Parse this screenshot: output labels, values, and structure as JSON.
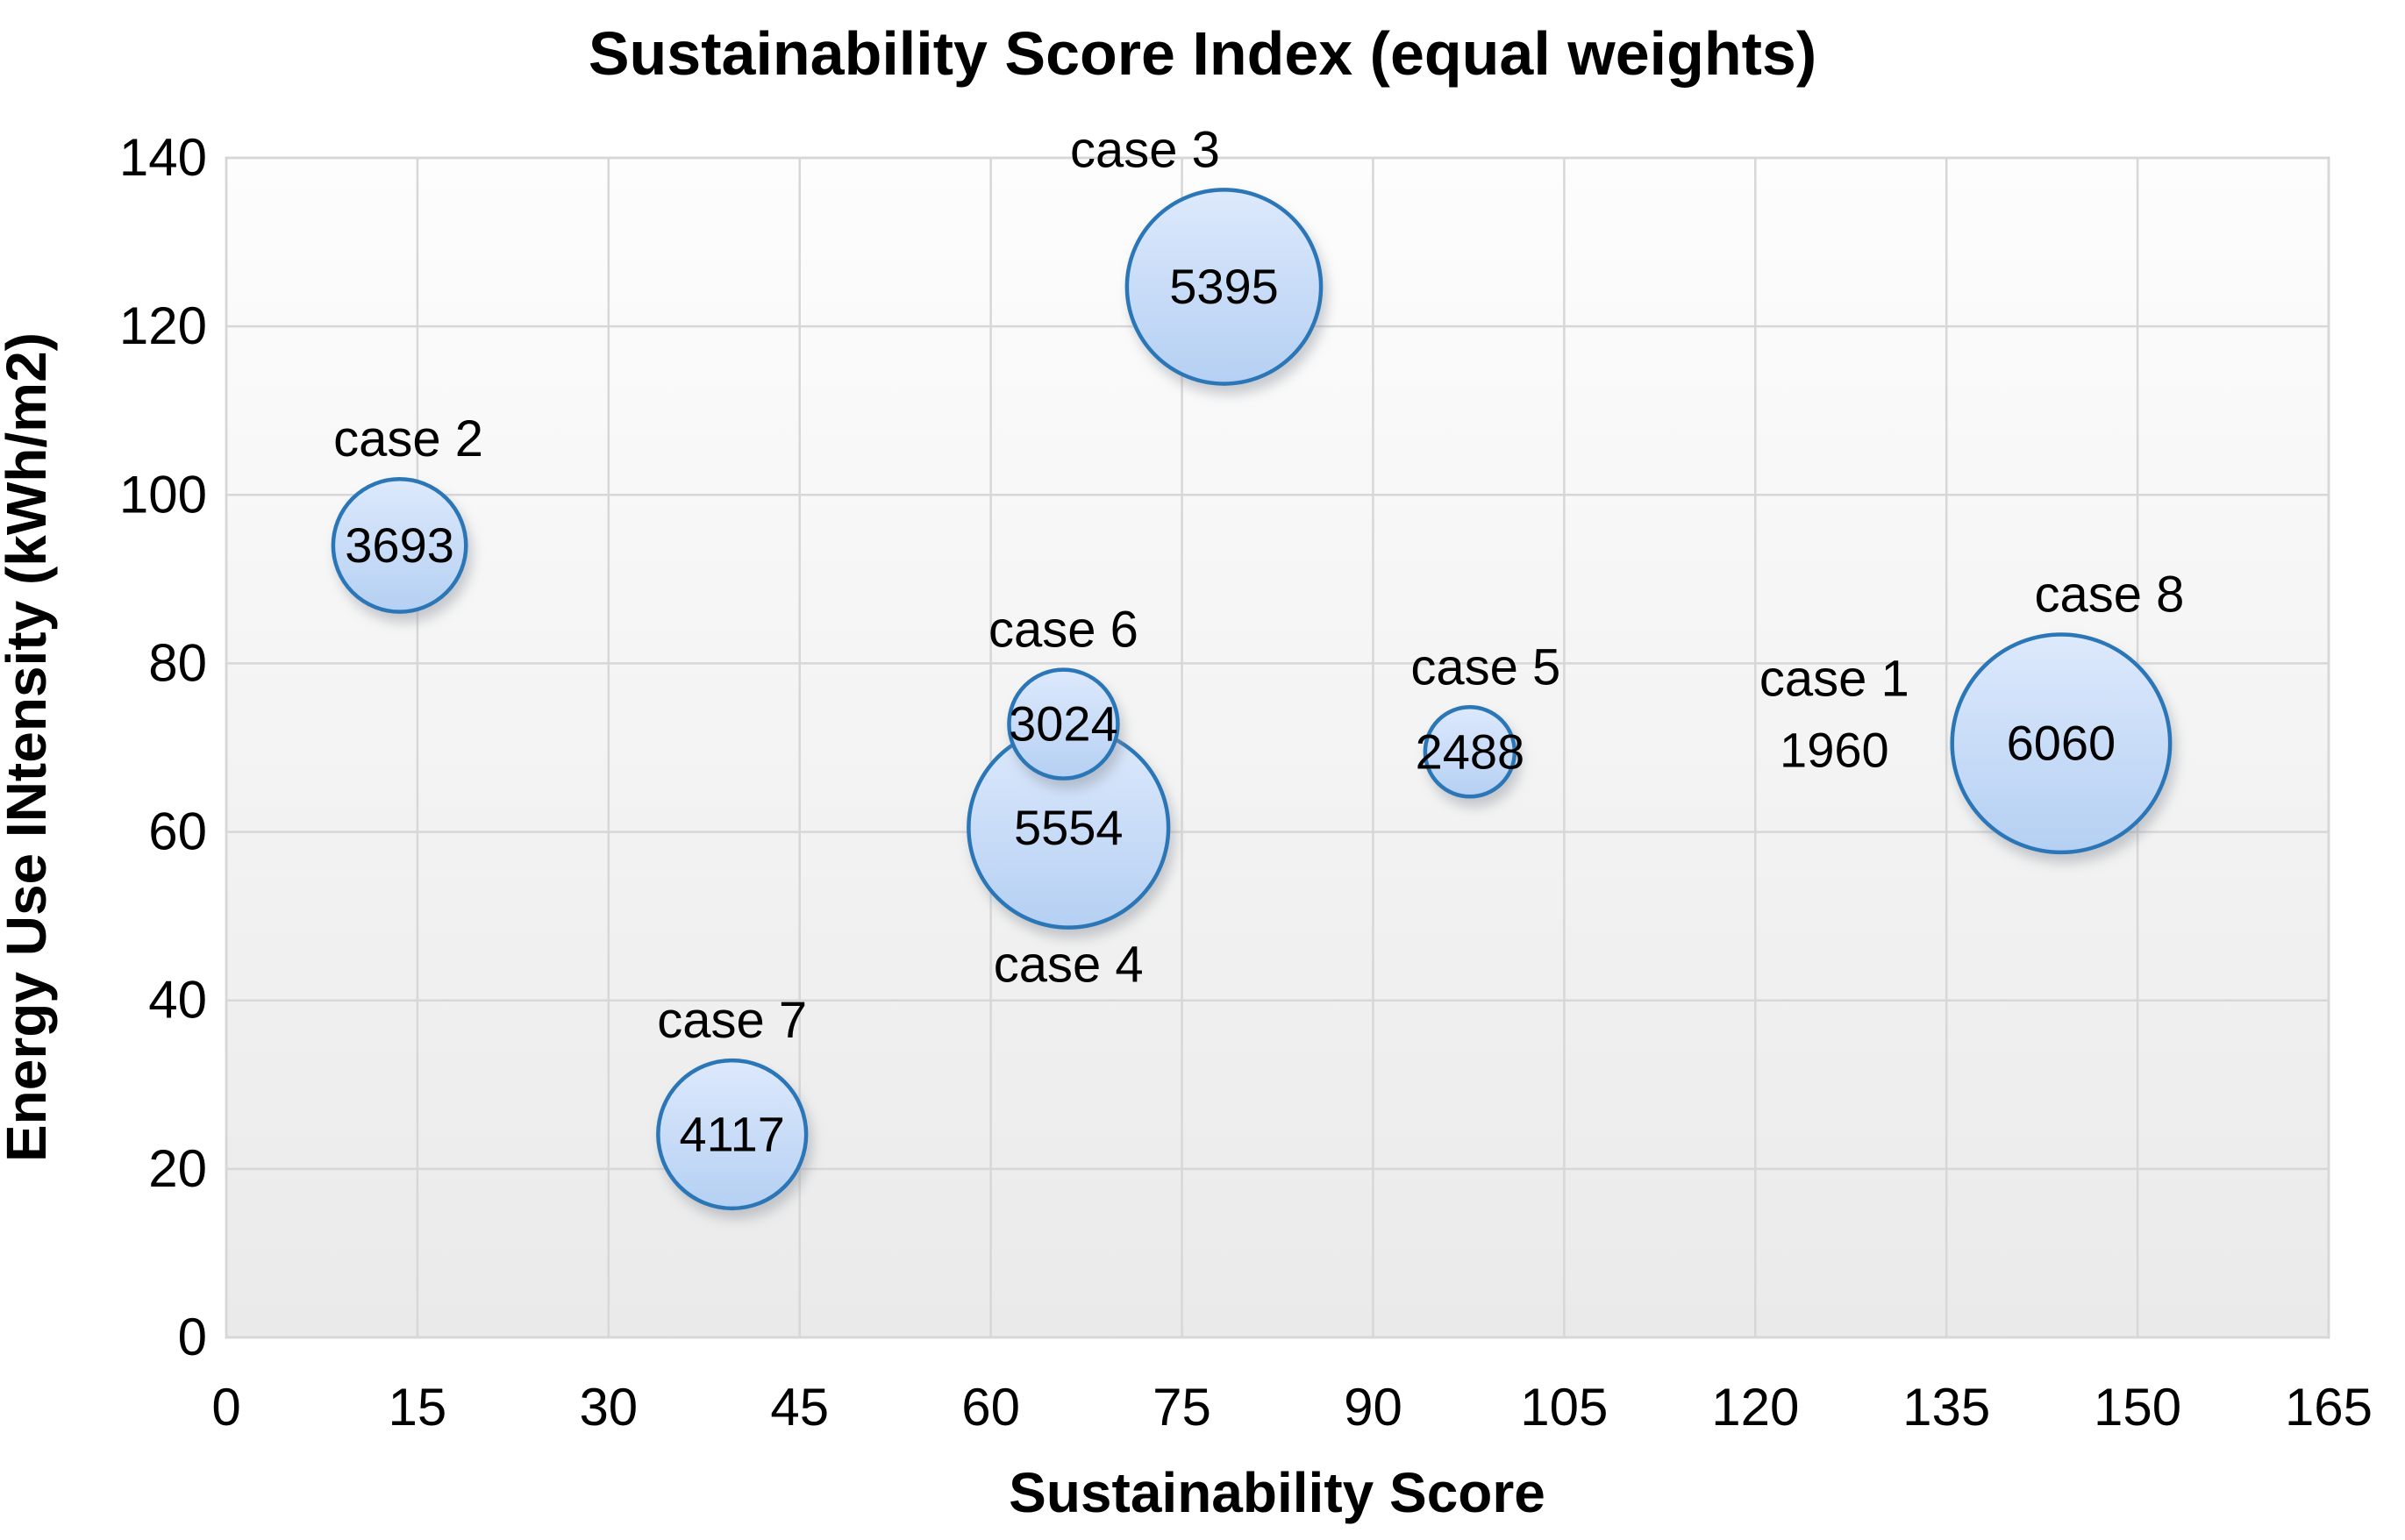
{
  "title": "Sustainability Score Index (equal weights)",
  "colors": {
    "bubble_fill_top": "#dde9fc",
    "bubble_fill_bottom": "#b5d0f3",
    "bubble_border": "#2a76b6",
    "case_label": "#e0403c",
    "value_text": "#000000",
    "gridline": "#d7d7d7",
    "plot_border": "#c2c2c2",
    "plot_bg_top": "#fdfdfd",
    "plot_bg_bottom": "#eaeaea",
    "shadow": "#8a8f99"
  },
  "chart_data": {
    "type": "bubble",
    "title": "Sustainability Score Index (equal weights)",
    "xlabel": "Sustainability Score",
    "ylabel": "Energy Use INtensity (kWh/m2)",
    "xlim": [
      0,
      165
    ],
    "ylim": [
      0,
      140
    ],
    "x_ticks": [
      0,
      15,
      30,
      45,
      60,
      75,
      90,
      105,
      120,
      135,
      150,
      165
    ],
    "y_ticks": [
      0,
      20,
      40,
      60,
      80,
      100,
      120,
      140
    ],
    "grid": true,
    "legend": "none",
    "bubble_radius_per_size_px": 0.0205,
    "points": [
      {
        "label": "case 1",
        "x": 126.2,
        "y": 69.7,
        "size": 1960,
        "bubble_visible": false,
        "label_position": "above",
        "label_dx": 0
      },
      {
        "label": "case 2",
        "x": 13.6,
        "y": 94.0,
        "size": 3693,
        "bubble_visible": true,
        "label_position": "above",
        "label_dx": 10
      },
      {
        "label": "case 3",
        "x": 78.3,
        "y": 124.7,
        "size": 5395,
        "bubble_visible": true,
        "label_position": "above",
        "label_dx": -90
      },
      {
        "label": "case 4",
        "x": 66.1,
        "y": 60.5,
        "size": 5554,
        "bubble_visible": true,
        "label_position": "below",
        "label_dx": 0
      },
      {
        "label": "case 5",
        "x": 97.6,
        "y": 69.5,
        "size": 2488,
        "bubble_visible": true,
        "label_position": "above",
        "label_dx": 18
      },
      {
        "label": "case 6",
        "x": 65.7,
        "y": 72.8,
        "size": 3024,
        "bubble_visible": true,
        "label_position": "above",
        "label_dx": 0
      },
      {
        "label": "case 7",
        "x": 39.7,
        "y": 24.1,
        "size": 4117,
        "bubble_visible": true,
        "label_position": "above",
        "label_dx": 0
      },
      {
        "label": "case 8",
        "x": 144.0,
        "y": 70.5,
        "size": 6060,
        "bubble_visible": true,
        "label_position": "above",
        "label_dx": 55
      }
    ]
  }
}
